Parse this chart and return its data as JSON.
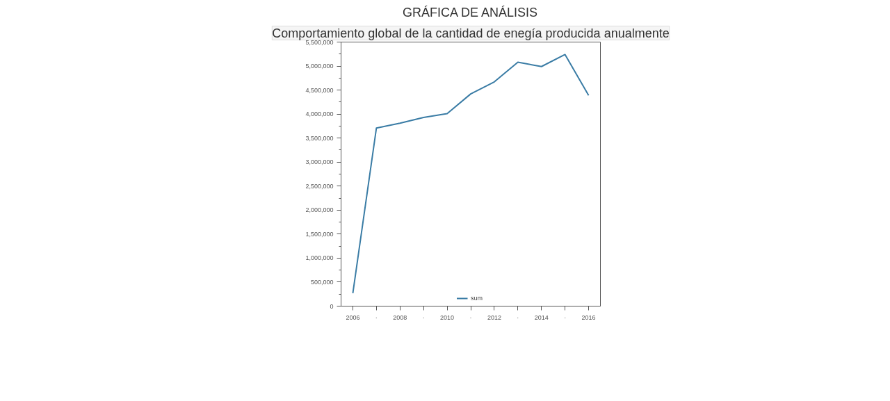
{
  "chart_data": {
    "type": "line",
    "title": "GRÁFICA DE ANÁLISIS",
    "subtitle": "Comportamiento global de la cantidad de enegía producida anualmente",
    "x": [
      2006,
      2007,
      2008,
      2009,
      2010,
      2011,
      2012,
      2013,
      2014,
      2015,
      2016
    ],
    "series": [
      {
        "name": "sum",
        "color": "#3a7ca5",
        "values": [
          270000,
          3710000,
          3810000,
          3930000,
          4010000,
          4420000,
          4670000,
          5080000,
          4990000,
          5240000,
          4390000
        ]
      }
    ],
    "xlim": [
      2005.5,
      2016.5
    ],
    "xticks": [
      2006,
      {
        "value": 2007,
        "label": "·"
      },
      2008,
      {
        "value": 2009,
        "label": "·"
      },
      2010,
      {
        "value": 2011,
        "label": "·"
      },
      2012,
      {
        "value": 2013,
        "label": "·"
      },
      2014,
      {
        "value": 2015,
        "label": "·"
      },
      2016
    ],
    "ylim": [
      0,
      5500000
    ],
    "yticks": [
      {
        "value": 0,
        "label": "0"
      },
      {
        "value": 500000,
        "label": "500,000"
      },
      {
        "value": 1000000,
        "label": "1,000,000"
      },
      {
        "value": 1500000,
        "label": "1,500,000"
      },
      {
        "value": 2000000,
        "label": "2,000,000"
      },
      {
        "value": 2500000,
        "label": "2,500,000"
      },
      {
        "value": 3000000,
        "label": "3,000,000"
      },
      {
        "value": 3500000,
        "label": "3,500,000"
      },
      {
        "value": 4000000,
        "label": "4,000,000"
      },
      {
        "value": 4500000,
        "label": "4,500,000"
      },
      {
        "value": 5000000,
        "label": "5,000,000"
      },
      {
        "value": 5500000,
        "label": "5,500,000"
      }
    ],
    "grid": false,
    "legend": "bottom",
    "marker": "none",
    "line_style": "solid"
  }
}
